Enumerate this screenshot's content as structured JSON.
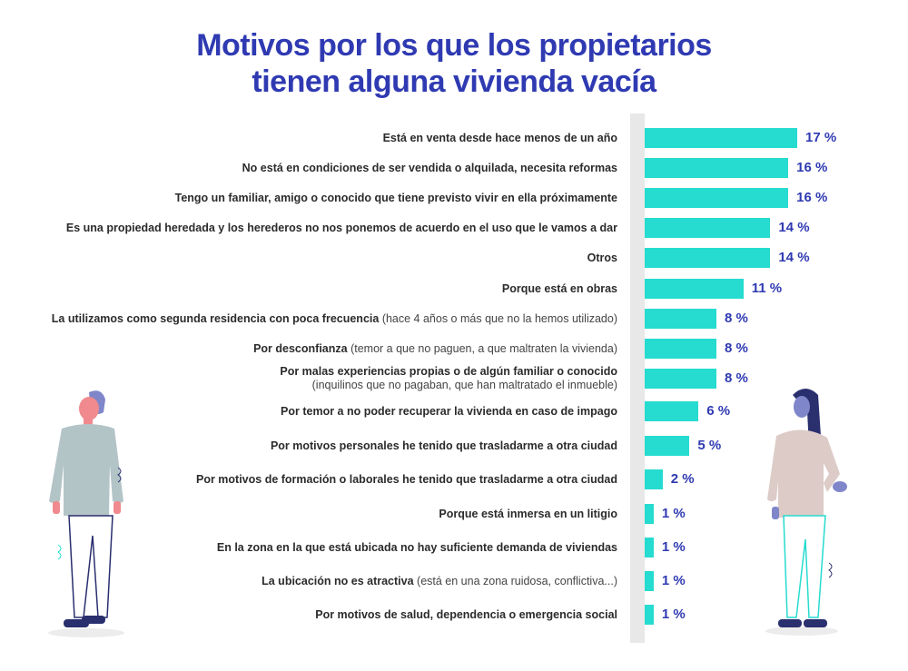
{
  "chart_data": {
    "type": "bar",
    "orientation": "horizontal",
    "title": "Motivos por los que los propietarios tienen alguna vivienda vacía",
    "title_lines": [
      "Motivos por los que los propietarios",
      "tienen alguna vivienda vacía"
    ],
    "unit": "%",
    "xlim": [
      0,
      17
    ],
    "grid": false,
    "legend": "none",
    "colors": {
      "bar": "#26dbcf",
      "value_label": "#2f3ab2",
      "title": "#2f3ab2"
    },
    "categories": [
      {
        "bold": "Está en venta desde hace menos de un año",
        "note": "",
        "note_newline": false
      },
      {
        "bold": "No está en condiciones de ser vendida o alquilada, necesita reformas",
        "note": "",
        "note_newline": false
      },
      {
        "bold": "Tengo un familiar, amigo o conocido que tiene previsto vivir en ella próximamente",
        "note": "",
        "note_newline": false
      },
      {
        "bold": "Es una propiedad heredada y los herederos no nos ponemos de acuerdo en el uso que le vamos a dar",
        "note": "",
        "note_newline": false
      },
      {
        "bold": "Otros",
        "note": "",
        "note_newline": false
      },
      {
        "bold": "Porque está en obras",
        "note": "",
        "note_newline": false
      },
      {
        "bold": "La utilizamos como segunda residencia con poca frecuencia",
        "note": "(hace 4 años o más que no la hemos utilizado)",
        "note_newline": false
      },
      {
        "bold": "Por desconfianza",
        "note": "(temor a que no paguen, a que maltraten la vivienda)",
        "note_newline": false
      },
      {
        "bold": "Por malas experiencias propias o de algún familiar o conocido",
        "note": "(inquilinos que no pagaban, que han maltratado el inmueble)",
        "note_newline": true
      },
      {
        "bold": "Por temor a no poder recuperar la vivienda en caso de impago",
        "note": "",
        "note_newline": false
      },
      {
        "bold": "Por motivos personales he tenido que trasladarme a otra ciudad",
        "note": "",
        "note_newline": false
      },
      {
        "bold": "Por motivos de formación o laborales he tenido que trasladarme a otra ciudad",
        "note": "",
        "note_newline": false
      },
      {
        "bold": "Porque está inmersa en un litigio",
        "note": "",
        "note_newline": false
      },
      {
        "bold": "En la zona en la que está ubicada no hay suficiente demanda de viviendas",
        "note": "",
        "note_newline": false
      },
      {
        "bold": "La ubicación no es atractiva",
        "note": "(está en una zona ruidosa, conflictiva...)",
        "note_newline": false
      },
      {
        "bold": "Por motivos de salud, dependencia o emergencia social",
        "note": "",
        "note_newline": false
      }
    ],
    "values": [
      17,
      16,
      16,
      14,
      14,
      11,
      8,
      8,
      8,
      6,
      5,
      2,
      1,
      1,
      1,
      1
    ],
    "value_labels": [
      "17 %",
      "16 %",
      "16 %",
      "14 %",
      "14 %",
      "11 %",
      "8 %",
      "8 %",
      "8 %",
      "6 %",
      "5 %",
      "2 %",
      "1 %",
      "1 %",
      "1 %",
      "1 %"
    ]
  }
}
